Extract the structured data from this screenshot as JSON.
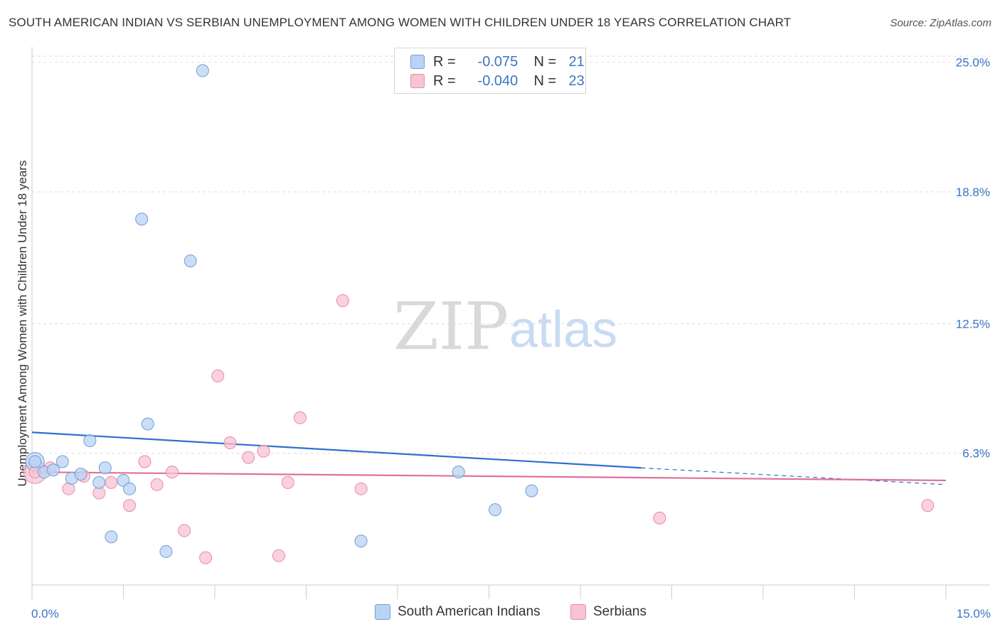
{
  "header": {
    "title": "SOUTH AMERICAN INDIAN VS SERBIAN UNEMPLOYMENT AMONG WOMEN WITH CHILDREN UNDER 18 YEARS CORRELATION CHART",
    "source": "Source: ZipAtlas.com"
  },
  "legend": {
    "series1": {
      "r_label": "R =",
      "r_value": "-0.075",
      "n_label": "N =",
      "n_value": "21"
    },
    "series2": {
      "r_label": "R =",
      "r_value": "-0.040",
      "n_label": "N =",
      "n_value": "23"
    }
  },
  "watermark": {
    "zip": "ZIP",
    "atlas": "atlas"
  },
  "colors": {
    "blue_fill": "#b9d3f3",
    "blue_stroke": "#6f9fd8",
    "blue_line": "#2f6fcf",
    "pink_fill": "#f8c3d3",
    "pink_stroke": "#e88aa8",
    "pink_line": "#e0709a",
    "tick_text": "#3a75c4",
    "grid": "#dddddd"
  },
  "chart_data": {
    "type": "scatter",
    "title": "SOUTH AMERICAN INDIAN VS SERBIAN UNEMPLOYMENT AMONG WOMEN WITH CHILDREN UNDER 18 YEARS CORRELATION CHART",
    "xlabel": "",
    "ylabel": "Unemployment Among Women with Children Under 18 years",
    "xlim": [
      0,
      15
    ],
    "ylim": [
      0,
      25.6
    ],
    "x_tick_labels": [
      "0.0%",
      "15.0%"
    ],
    "y_ticks": [
      6.3,
      12.5,
      18.8,
      25.0
    ],
    "y_tick_labels": [
      "6.3%",
      "12.5%",
      "18.8%",
      "25.0%"
    ],
    "legend_position": "bottom",
    "series": [
      {
        "name": "South American Indians",
        "color": "#b9d3f3",
        "r": -0.075,
        "n": 21,
        "points": [
          {
            "x": 0.05,
            "y": 5.9
          },
          {
            "x": 0.2,
            "y": 5.4
          },
          {
            "x": 0.35,
            "y": 5.5
          },
          {
            "x": 0.5,
            "y": 5.9
          },
          {
            "x": 0.65,
            "y": 5.1
          },
          {
            "x": 0.8,
            "y": 5.3
          },
          {
            "x": 0.95,
            "y": 6.9
          },
          {
            "x": 1.1,
            "y": 4.9
          },
          {
            "x": 1.2,
            "y": 5.6
          },
          {
            "x": 1.3,
            "y": 2.3
          },
          {
            "x": 1.5,
            "y": 5.0
          },
          {
            "x": 1.6,
            "y": 4.6
          },
          {
            "x": 1.8,
            "y": 17.5
          },
          {
            "x": 1.9,
            "y": 7.7
          },
          {
            "x": 2.2,
            "y": 1.6
          },
          {
            "x": 2.6,
            "y": 15.5
          },
          {
            "x": 2.8,
            "y": 24.6
          },
          {
            "x": 5.4,
            "y": 2.1
          },
          {
            "x": 7.0,
            "y": 5.4
          },
          {
            "x": 7.6,
            "y": 3.6
          },
          {
            "x": 8.2,
            "y": 4.5
          }
        ],
        "trend": {
          "x0": 0.0,
          "y0": 7.3,
          "x1": 10.0,
          "y1": 5.6,
          "dash_x1": 15.0,
          "dash_y1": 4.8
        }
      },
      {
        "name": "Serbians",
        "color": "#f8c3d3",
        "r": -0.04,
        "n": 23,
        "points": [
          {
            "x": 0.05,
            "y": 5.4
          },
          {
            "x": 0.3,
            "y": 5.6
          },
          {
            "x": 0.6,
            "y": 4.6
          },
          {
            "x": 0.85,
            "y": 5.2
          },
          {
            "x": 1.1,
            "y": 4.4
          },
          {
            "x": 1.3,
            "y": 4.9
          },
          {
            "x": 1.6,
            "y": 3.8
          },
          {
            "x": 1.85,
            "y": 5.9
          },
          {
            "x": 2.05,
            "y": 4.8
          },
          {
            "x": 2.3,
            "y": 5.4
          },
          {
            "x": 2.5,
            "y": 2.6
          },
          {
            "x": 2.85,
            "y": 1.3
          },
          {
            "x": 3.05,
            "y": 10.0
          },
          {
            "x": 3.25,
            "y": 6.8
          },
          {
            "x": 3.55,
            "y": 6.1
          },
          {
            "x": 3.8,
            "y": 6.4
          },
          {
            "x": 4.05,
            "y": 1.4
          },
          {
            "x": 4.2,
            "y": 4.9
          },
          {
            "x": 4.4,
            "y": 8.0
          },
          {
            "x": 5.1,
            "y": 13.6
          },
          {
            "x": 5.4,
            "y": 4.6
          },
          {
            "x": 10.3,
            "y": 3.2
          },
          {
            "x": 14.7,
            "y": 3.8
          }
        ],
        "trend": {
          "x0": 0.0,
          "y0": 5.4,
          "x1": 15.0,
          "y1": 5.0
        }
      }
    ]
  }
}
